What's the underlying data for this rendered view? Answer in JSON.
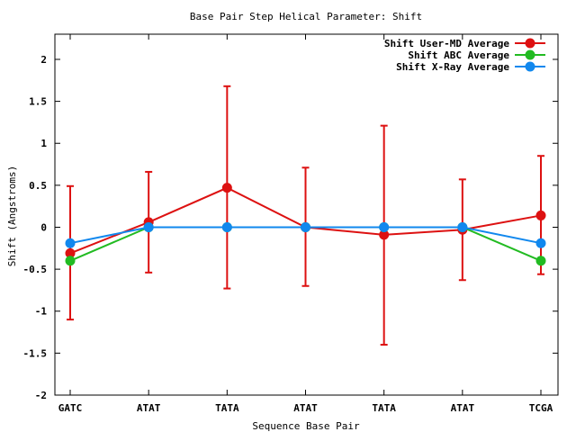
{
  "chart_data": {
    "type": "line",
    "title": "Base Pair Step Helical Parameter: Shift",
    "xlabel": "Sequence Base Pair",
    "ylabel": "Shift (Angstroms)",
    "categories": [
      "GATC",
      "ATAT",
      "TATA",
      "ATAT",
      "TATA",
      "ATAT",
      "TCGA"
    ],
    "ylim": [
      -2,
      2.3
    ],
    "yticks": [
      -2,
      -1.5,
      -1,
      -0.5,
      0,
      0.5,
      1,
      1.5,
      2
    ],
    "ytick_labels": [
      "-2",
      "-1.5",
      "-1",
      "-0.5",
      "0",
      "0.5",
      "1",
      "1.5",
      "2"
    ],
    "grid": false,
    "legend_position": "top-right",
    "series": [
      {
        "name": "Shift User-MD Average",
        "color": "#dd1111",
        "values": [
          -0.31,
          0.06,
          0.47,
          0.0,
          -0.09,
          -0.03,
          0.14
        ],
        "error_low": [
          -1.1,
          -0.54,
          -0.73,
          -0.7,
          -1.4,
          -0.63,
          -0.56
        ],
        "error_high": [
          0.49,
          0.66,
          1.68,
          0.71,
          1.21,
          0.57,
          0.85
        ]
      },
      {
        "name": "Shift ABC Average",
        "color": "#22bb22",
        "values": [
          -0.4,
          0.0,
          0.0,
          0.0,
          0.0,
          0.0,
          -0.4
        ]
      },
      {
        "name": "Shift X-Ray Average",
        "color": "#1188ee",
        "values": [
          -0.19,
          0.0,
          0.0,
          0.0,
          0.0,
          0.0,
          -0.19
        ]
      }
    ]
  }
}
